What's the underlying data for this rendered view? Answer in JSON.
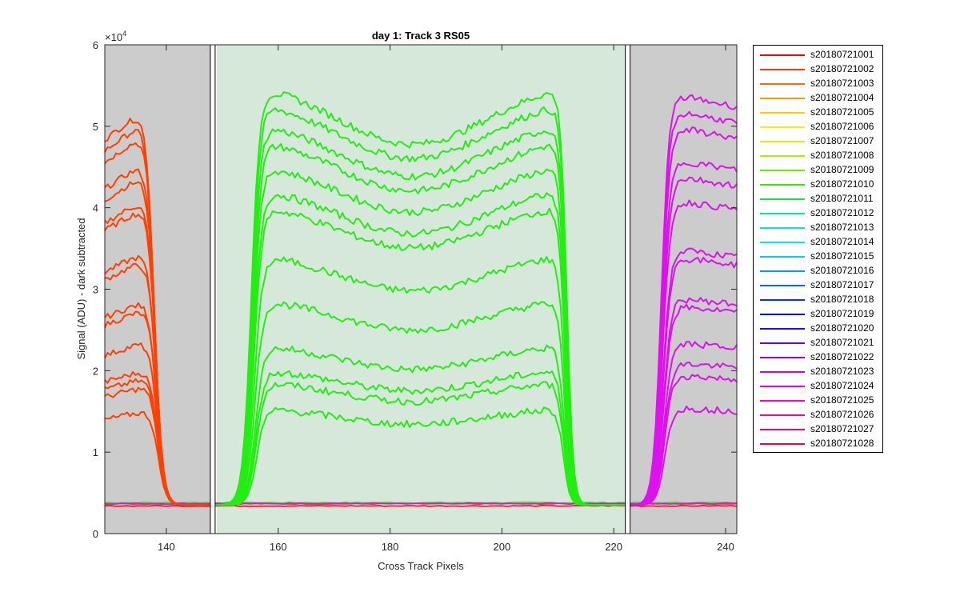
{
  "chart_data": {
    "type": "line",
    "title": "day 1: Track 3  RS05",
    "xlabel": "Cross Track Pixels",
    "ylabel": "Signal (ADU) - dark subtracted",
    "y_exponent_label": "×10",
    "y_exponent_power": "4",
    "xlim": [
      129,
      242
    ],
    "ylim": [
      0,
      60000
    ],
    "xticks": [
      140,
      160,
      180,
      200,
      220,
      240
    ],
    "xtick_labels": [
      "140",
      "160",
      "180",
      "200",
      "220",
      "240"
    ],
    "yticks": [
      0,
      10000,
      20000,
      30000,
      40000,
      50000,
      60000
    ],
    "ytick_labels": [
      "0",
      "1",
      "2",
      "3",
      "4",
      "5",
      "6"
    ],
    "grid": false,
    "legend_position": "outside-right",
    "regions": [
      {
        "name": "left-dark-region",
        "x0": 129,
        "x1": 148,
        "color": "#cccccc"
      },
      {
        "name": "center-illuminated-region",
        "x0": 149,
        "x1": 222.5,
        "color": "#d6e8da"
      },
      {
        "name": "right-dark-region",
        "x0": 223,
        "x1": 242,
        "color": "#cccccc"
      }
    ],
    "boundary_markers": [
      148.3,
      222.5
    ],
    "baseline": 3500,
    "groups": {
      "left": {
        "color": "#ff4000",
        "x_edge": 137.8,
        "levels": [
          52000,
          50500,
          49000,
          45500,
          44000,
          41000,
          40000,
          34500,
          33500,
          28500,
          27500,
          23500,
          20000,
          19000,
          18000,
          15000
        ]
      },
      "center": {
        "color": "#22ee11",
        "levels": [
          54500,
          52500,
          50000,
          48000,
          45000,
          42000,
          40000,
          34000,
          28500,
          23000,
          20000,
          18500,
          15300
        ]
      },
      "right": {
        "color": "#dd11ee",
        "x_edge": 228.5,
        "levels": [
          54000,
          52000,
          50000,
          46000,
          44000,
          41000,
          35000,
          34000,
          29000,
          28000,
          23500,
          21000,
          19500,
          15500
        ]
      }
    },
    "series_names": [
      "s20180721001",
      "s20180721002",
      "s20180721003",
      "s20180721004",
      "s20180721005",
      "s20180721006",
      "s20180721007",
      "s20180721008",
      "s20180721009",
      "s20180721010",
      "s20180721011",
      "s20180721012",
      "s20180721013",
      "s20180721014",
      "s20180721015",
      "s20180721016",
      "s20180721017",
      "s20180721018",
      "s20180721019",
      "s20180721020",
      "s20180721021",
      "s20180721022",
      "s20180721023",
      "s20180721024",
      "s20180721025",
      "s20180721026",
      "s20180721027",
      "s20180721028"
    ],
    "series_colors": [
      "#ff0000",
      "#ff3a00",
      "#ff6a00",
      "#ff9a00",
      "#ffcc00",
      "#f7f000",
      "#d8f200",
      "#a8f000",
      "#6cee00",
      "#3ae800",
      "#12e844",
      "#00ee9a",
      "#00eecc",
      "#00eeee",
      "#00ccff",
      "#009aff",
      "#0066ff",
      "#0033ff",
      "#0000ff",
      "#3300ff",
      "#6600ff",
      "#9900ff",
      "#cc00ff",
      "#ee00ee",
      "#ff00cc",
      "#ff0099",
      "#ff0066",
      "#ff0033"
    ]
  }
}
